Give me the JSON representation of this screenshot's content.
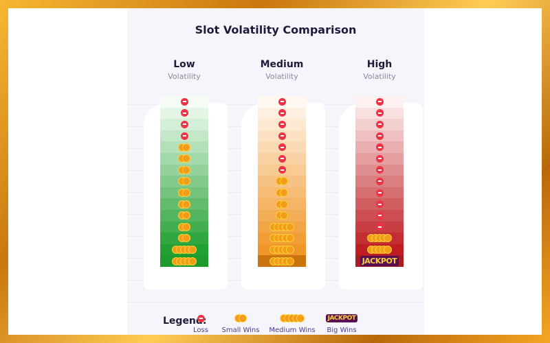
{
  "title": "Slot Volatility Comparison",
  "colors": {
    "loss": "#ee3346",
    "coin": "#f39c1a",
    "panel": "#f7f5fc"
  },
  "columns": [
    {
      "name": "Low",
      "subtitle": "Volatility",
      "theme": "green",
      "rows": [
        "loss",
        "loss",
        "loss",
        "loss",
        "small",
        "small",
        "small",
        "small",
        "small",
        "small",
        "small",
        "small",
        "small",
        "medium",
        "medium"
      ]
    },
    {
      "name": "Medium",
      "subtitle": "Volatility",
      "theme": "orange",
      "rows": [
        "loss",
        "loss",
        "loss",
        "loss",
        "loss",
        "loss",
        "loss",
        "small",
        "small",
        "small",
        "small",
        "medium",
        "medium",
        "medium",
        "medium"
      ]
    },
    {
      "name": "High",
      "subtitle": "Volatility",
      "theme": "red",
      "rows": [
        "loss",
        "loss",
        "loss",
        "loss",
        "loss",
        "loss",
        "loss",
        "loss",
        "loss",
        "loss",
        "loss",
        "loss",
        "medium",
        "medium",
        "jackpot"
      ]
    }
  ],
  "jackpot_text": "JACKPOT",
  "legend": {
    "title": "Legend:",
    "items": [
      {
        "kind": "loss",
        "label": "Loss"
      },
      {
        "kind": "small",
        "label": "Small Wins"
      },
      {
        "kind": "medium",
        "label": "Medium Wins"
      },
      {
        "kind": "jackpot",
        "label": "Big Wins"
      }
    ]
  }
}
